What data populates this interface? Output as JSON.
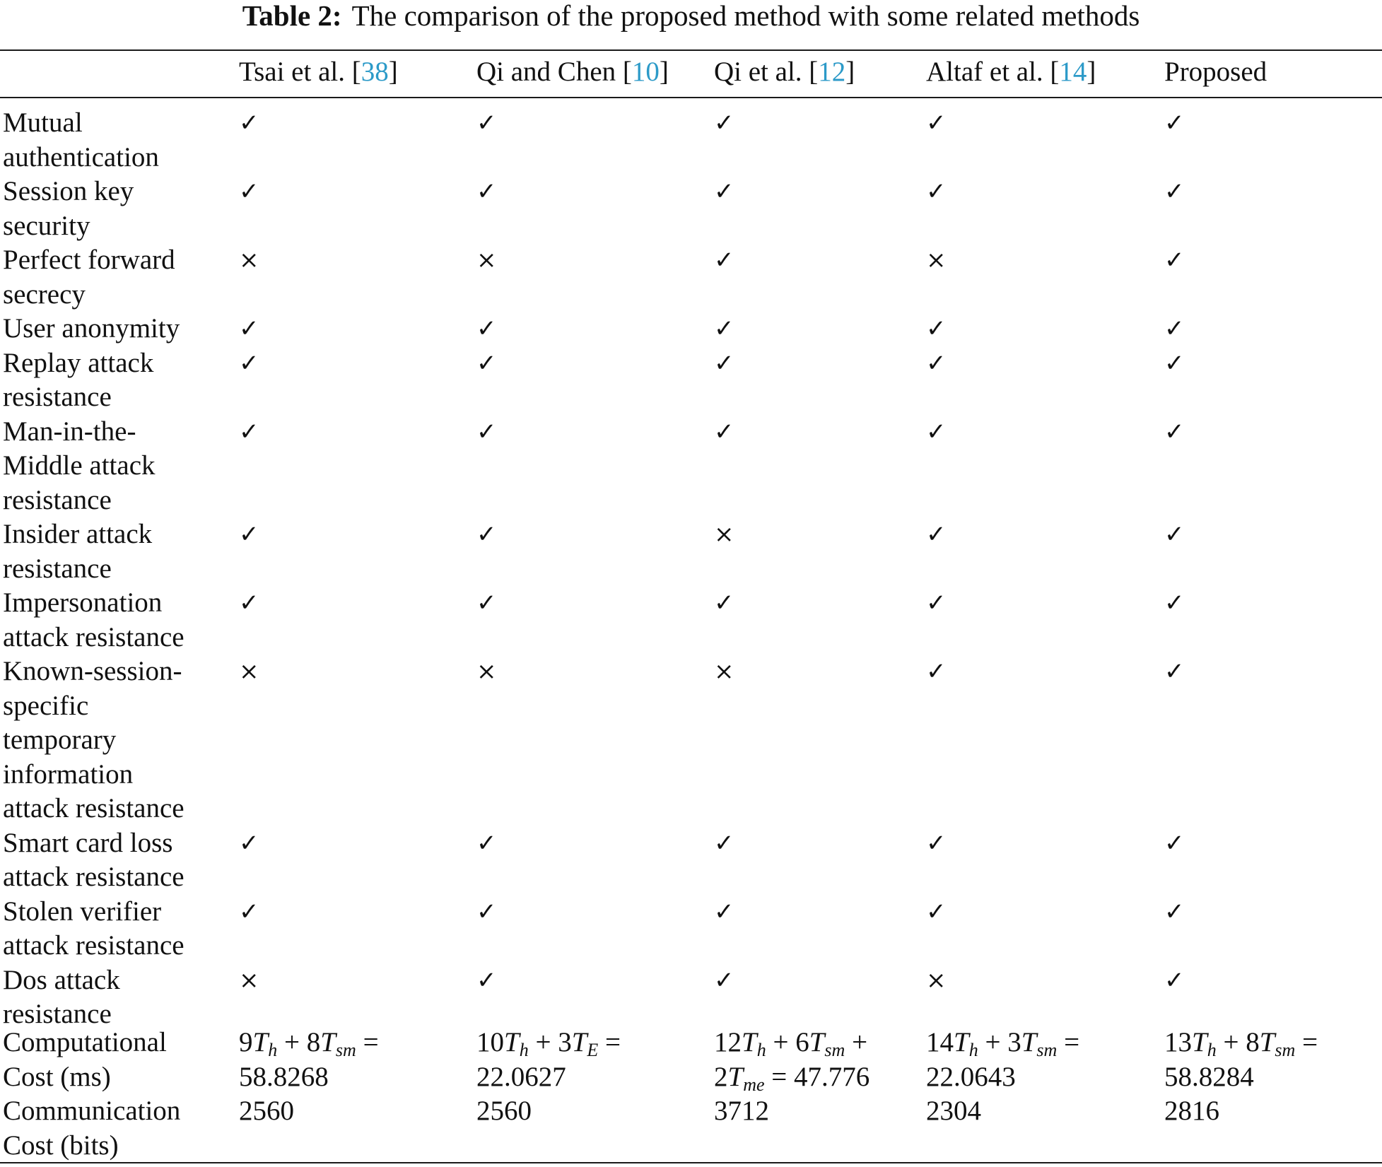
{
  "caption": {
    "label": "Table 2:",
    "text": "The comparison of the proposed method with some related methods"
  },
  "columns": [
    {
      "name": "Tsai et al. [",
      "ref": "38",
      "close": "]"
    },
    {
      "name": "Qi and Chen [",
      "ref": "10",
      "close": "]"
    },
    {
      "name": "Qi et al. [",
      "ref": "12",
      "close": "]"
    },
    {
      "name": "Altaf et al. [",
      "ref": "14",
      "close": "]"
    },
    {
      "name": "Proposed",
      "ref": "",
      "close": ""
    }
  ],
  "rows": [
    {
      "label": [
        "Mutual",
        "authentication"
      ],
      "values": [
        "✓",
        "✓",
        "✓",
        "✓",
        "✓"
      ]
    },
    {
      "label": [
        "Session key",
        "security"
      ],
      "values": [
        "✓",
        "✓",
        "✓",
        "✓",
        "✓"
      ]
    },
    {
      "label": [
        "Perfect forward",
        "secrecy"
      ],
      "values": [
        "×",
        "×",
        "✓",
        "×",
        "✓"
      ]
    },
    {
      "label": [
        "User anonymity"
      ],
      "values": [
        "✓",
        "✓",
        "✓",
        "✓",
        "✓"
      ]
    },
    {
      "label": [
        "Replay attack",
        "resistance"
      ],
      "values": [
        "✓",
        "✓",
        "✓",
        "✓",
        "✓"
      ]
    },
    {
      "label": [
        "Man-in-the-",
        "Middle attack",
        "resistance"
      ],
      "values": [
        "✓",
        "✓",
        "✓",
        "✓",
        "✓"
      ]
    },
    {
      "label": [
        "Insider attack",
        "resistance"
      ],
      "values": [
        "✓",
        "✓",
        "×",
        "✓",
        "✓"
      ]
    },
    {
      "label": [
        "Impersonation",
        "attack resistance"
      ],
      "values": [
        "✓",
        "✓",
        "✓",
        "✓",
        "✓"
      ]
    },
    {
      "label": [
        "Known-session-",
        "specific",
        "temporary",
        "information",
        "attack resistance"
      ],
      "values": [
        "×",
        "×",
        "×",
        "✓",
        "✓"
      ]
    },
    {
      "label": [
        "Smart card loss",
        "attack resistance"
      ],
      "values": [
        "✓",
        "✓",
        "✓",
        "✓",
        "✓"
      ]
    },
    {
      "label": [
        "Stolen verifier",
        "attack resistance"
      ],
      "values": [
        "✓",
        "✓",
        "✓",
        "✓",
        "✓"
      ]
    },
    {
      "label": [
        "Dos attack",
        "resistance"
      ],
      "values": [
        "×",
        "✓",
        "✓",
        "×",
        "✓"
      ]
    }
  ],
  "cost_rows": [
    {
      "label": [
        "Computational",
        "Cost (ms)"
      ],
      "values": [
        {
          "line1": "9T_{h} + 8T_{sm} =",
          "line2": "58.8268"
        },
        {
          "line1": "10T_{h} + 3T_{E} =",
          "line2": "22.0627"
        },
        {
          "line1": "12T_{h} + 6T_{sm} +",
          "line2": "2T_{me} = 47.776"
        },
        {
          "line1": "14T_{h} + 3T_{sm} =",
          "line2": "22.0643"
        },
        {
          "line1": "13T_{h} + 8T_{sm} =",
          "line2": "58.8284"
        }
      ]
    },
    {
      "label": [
        "Communication",
        "Cost (bits)"
      ],
      "values": [
        "2560",
        "2560",
        "3712",
        "2304",
        "2816"
      ]
    }
  ]
}
